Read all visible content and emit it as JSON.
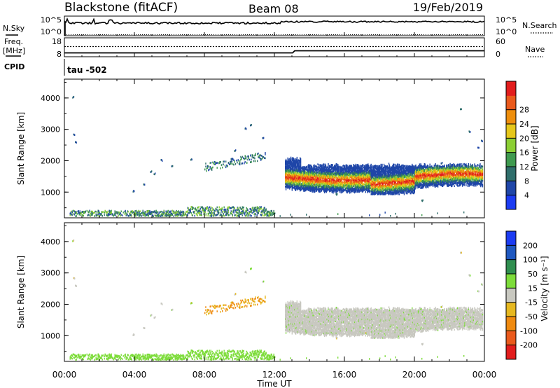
{
  "header": {
    "station": "Blackstone (fitACF)",
    "beam": "Beam 08",
    "date": "19/Feb/2019"
  },
  "status_panel": {
    "nsky_label": "N.Sky",
    "nsearch_label": "N.Search",
    "left_ticks": [
      "10^5",
      "10^0"
    ],
    "right_ticks": [
      "10^5",
      "10^0"
    ],
    "freq_label": "Freq.",
    "freq_unit": "[MHz]",
    "freq_ticks": [
      "18",
      "8"
    ],
    "nave_ticks": [
      "60",
      "0"
    ],
    "nave_label": "Nave",
    "cpid_label": "CPID",
    "cpid_value": "tau -502"
  },
  "chart_data": [
    {
      "type": "heatmap",
      "panel": "power",
      "title": "",
      "xlabel": "",
      "ylabel": "Slant Range [km]",
      "xlim": [
        0,
        24
      ],
      "ylim": [
        180,
        4600
      ],
      "x_ticks": [
        "00:00",
        "04:00",
        "08:00",
        "12:00",
        "16:00",
        "20:00",
        "00:00"
      ],
      "y_ticks": [
        1000,
        2000,
        3000,
        4000
      ],
      "colorbar": {
        "label": "Power [dB]",
        "range": [
          0,
          32
        ],
        "ticks": [
          4,
          8,
          12,
          16,
          20,
          24,
          28
        ],
        "colors": [
          "#1c3cf2",
          "#1f46a8",
          "#2f6e6b",
          "#3f9a4f",
          "#8ccf34",
          "#e6c71a",
          "#ee8e0c",
          "#ea5a1c",
          "#e21d1d"
        ]
      },
      "scatter_regions": [
        {
          "t_start": 12.6,
          "t_end": 23.9,
          "range_low": 1000,
          "range_high": 1900,
          "max_power": 30
        },
        {
          "t_start": 0.3,
          "t_end": 12.0,
          "range_low": 180,
          "range_high": 420,
          "max_power": 14
        },
        {
          "t_start": 8.0,
          "t_end": 11.5,
          "range_low": 1700,
          "range_high": 2150,
          "max_power": 10
        }
      ]
    },
    {
      "type": "heatmap",
      "panel": "velocity",
      "title": "",
      "xlabel": "Time UT",
      "ylabel": "Slant Range [km]",
      "xlim": [
        0,
        24
      ],
      "ylim": [
        180,
        4600
      ],
      "x_ticks": [
        "00:00",
        "04:00",
        "08:00",
        "12:00",
        "16:00",
        "20:00",
        "00:00"
      ],
      "y_ticks": [
        1000,
        2000,
        3000,
        4000
      ],
      "colorbar": {
        "label": "Velocity [m s⁻¹]",
        "ticks": [
          "200",
          "100",
          "50",
          "15",
          "-15",
          "-50",
          "-100",
          "-200"
        ],
        "colors": [
          "#1c3cf2",
          "#1f58c0",
          "#2f8e4f",
          "#7ddc3a",
          "#c8c8c0",
          "#e6b820",
          "#ef8a10",
          "#ea5a1c",
          "#e21d1d"
        ]
      },
      "scatter_regions": [
        {
          "t_start": 12.6,
          "t_end": 23.9,
          "range_low": 1000,
          "range_high": 2050,
          "velocity": 0
        },
        {
          "t_start": 0.3,
          "t_end": 12.0,
          "range_low": 180,
          "range_high": 420,
          "velocity": 30
        },
        {
          "t_start": 8.0,
          "t_end": 11.5,
          "range_low": 1700,
          "range_high": 2150,
          "velocity": -50
        }
      ]
    }
  ]
}
